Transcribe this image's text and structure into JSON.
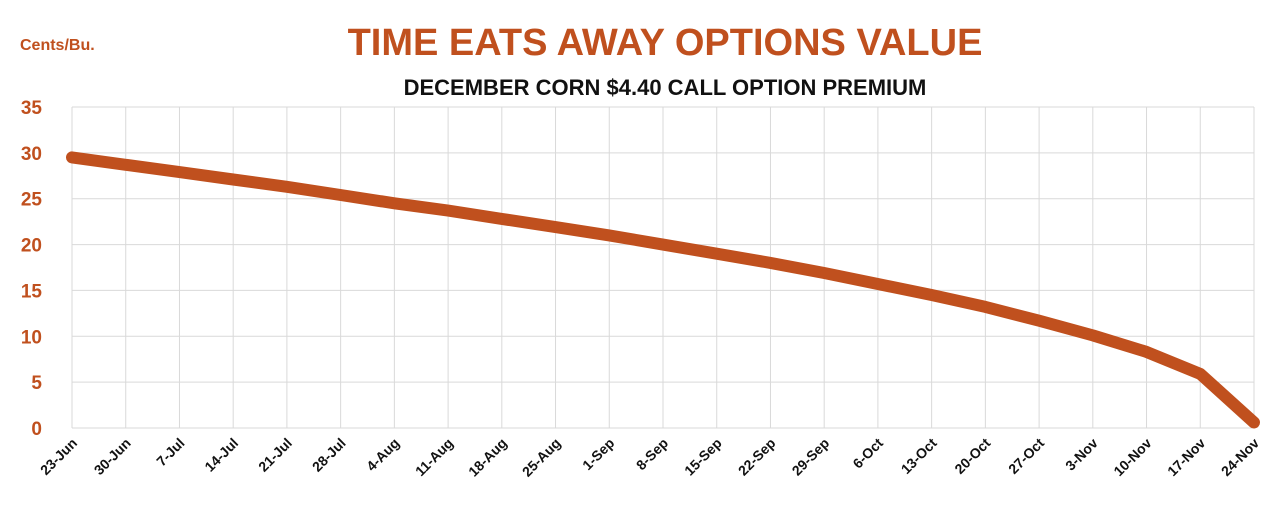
{
  "chart_data": {
    "type": "line",
    "title": "TIME EATS AWAY OPTIONS VALUE",
    "subtitle": "DECEMBER CORN $4.40 CALL OPTION PREMIUM",
    "ylabel": "Cents/Bu.",
    "xlabel": "",
    "ylim": [
      0,
      35
    ],
    "yticks": [
      0,
      5,
      10,
      15,
      20,
      25,
      30,
      35
    ],
    "grid": true,
    "legend": "none",
    "categories": [
      "23-Jun",
      "30-Jun",
      "7-Jul",
      "14-Jul",
      "21-Jul",
      "28-Jul",
      "4-Aug",
      "11-Aug",
      "18-Aug",
      "25-Aug",
      "1-Sep",
      "8-Sep",
      "15-Sep",
      "22-Sep",
      "29-Sep",
      "6-Oct",
      "13-Oct",
      "20-Oct",
      "27-Oct",
      "3-Nov",
      "10-Nov",
      "17-Nov",
      "24-Nov"
    ],
    "series": [
      {
        "values": [
          29.5,
          28.7,
          27.9,
          27.1,
          26.3,
          25.4,
          24.5,
          23.7,
          22.8,
          21.9,
          21.0,
          20.0,
          19.0,
          18.0,
          16.9,
          15.7,
          14.5,
          13.2,
          11.7,
          10.1,
          8.3,
          5.9,
          0.6
        ],
        "color": "#C0501E"
      }
    ]
  }
}
